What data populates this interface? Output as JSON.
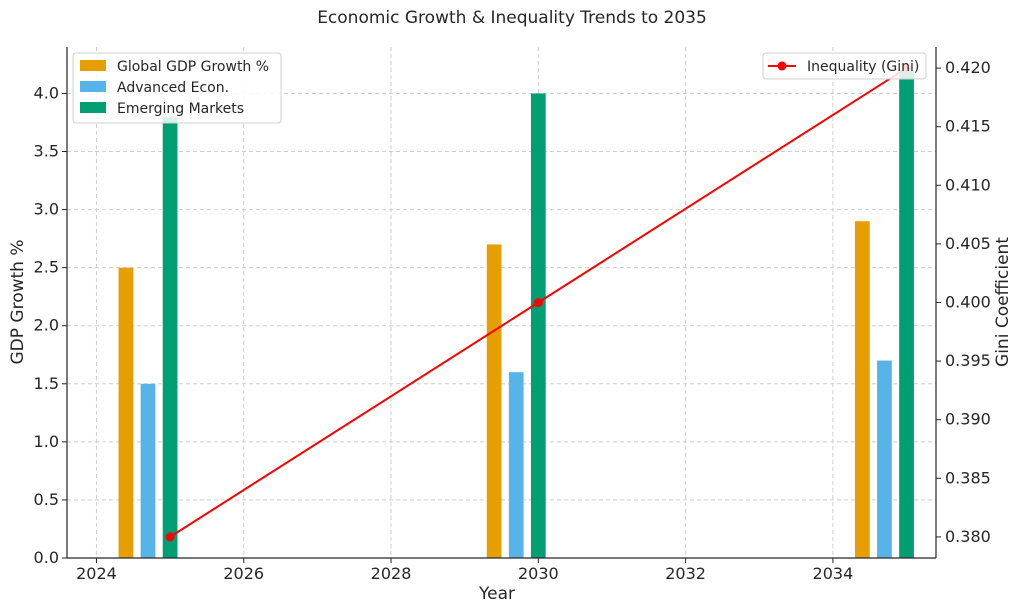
{
  "chart_data": {
    "title": "Economic Growth & Inequality Trends to 2035",
    "xlabel": "Year",
    "ylabel_left": "GDP Growth %",
    "ylabel_right": "Gini Coefficient",
    "xlim": [
      2023.6,
      2035.4
    ],
    "ylim_left": [
      0,
      4.4
    ],
    "ylim_right": [
      0.3782,
      0.4218
    ],
    "x_ticks": [
      2024,
      2026,
      2028,
      2030,
      2032,
      2034
    ],
    "y_left_ticks": [
      0.0,
      0.5,
      1.0,
      1.5,
      2.0,
      2.5,
      3.0,
      3.5,
      4.0
    ],
    "y_right_ticks": [
      0.38,
      0.385,
      0.39,
      0.395,
      0.4,
      0.405,
      0.41,
      0.415,
      0.42
    ],
    "grid": true,
    "bar_width_years": 0.2,
    "bar_offsets_years": [
      -0.6,
      -0.3,
      0.0
    ],
    "categories": [
      2025,
      2030,
      2035
    ],
    "bar_series": [
      {
        "name": "Global GDP Growth %",
        "color": "#E69F00",
        "values": [
          2.5,
          2.7,
          2.9
        ]
      },
      {
        "name": "Advanced Econ.",
        "color": "#56B4E9",
        "values": [
          1.5,
          1.6,
          1.7
        ]
      },
      {
        "name": "Emerging Markets",
        "color": "#009E73",
        "values": [
          3.8,
          4.0,
          4.2
        ]
      }
    ],
    "line_series": {
      "name": "Inequality (Gini)",
      "color": "#FF0000",
      "x": [
        2025,
        2030,
        2035
      ],
      "values": [
        0.38,
        0.4,
        0.42
      ]
    },
    "legend_left_position": "top-left",
    "legend_right_position": "top-right"
  }
}
